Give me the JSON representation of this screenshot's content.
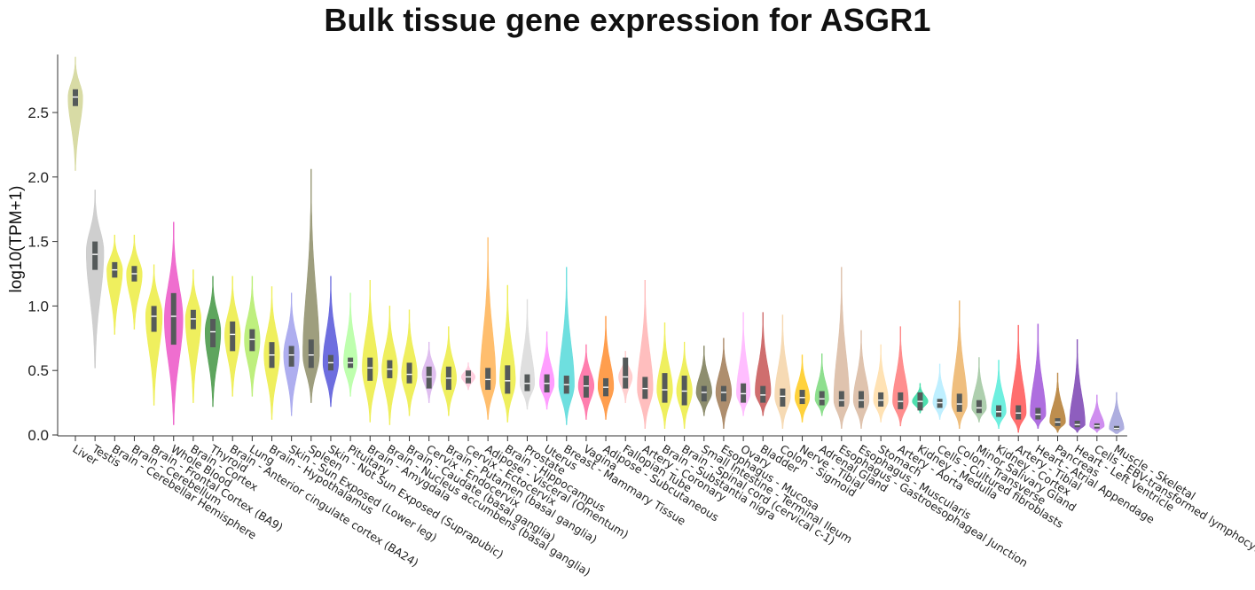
{
  "chart_data": {
    "type": "violin",
    "title": "Bulk tissue gene expression for ASGR1",
    "ylabel": "log10(TPM+1)",
    "xlabel": "",
    "ylim": [
      0,
      2.95
    ],
    "yticks": [
      "0.0",
      "0.5",
      "1.0",
      "1.5",
      "2.0",
      "2.5"
    ],
    "series": [
      {
        "tissue": "Liver",
        "color": "#d6d9a0",
        "min": 2.05,
        "q1": 2.55,
        "median": 2.62,
        "q3": 2.68,
        "max": 2.93,
        "peak": 2.62,
        "width": 0.75
      },
      {
        "tissue": "Testis",
        "color": "#cccccc",
        "min": 0.52,
        "q1": 1.28,
        "median": 1.4,
        "q3": 1.5,
        "max": 1.9,
        "peak": 1.42,
        "width": 0.9
      },
      {
        "tissue": "Brain - Cerebellar Hemisphere",
        "color": "#eeee55",
        "min": 0.78,
        "q1": 1.22,
        "median": 1.28,
        "q3": 1.34,
        "max": 1.55,
        "peak": 1.28,
        "width": 0.8
      },
      {
        "tissue": "Brain - Cerebellum",
        "color": "#eeee55",
        "min": 0.82,
        "q1": 1.19,
        "median": 1.25,
        "q3": 1.31,
        "max": 1.55,
        "peak": 1.25,
        "width": 0.8
      },
      {
        "tissue": "Brain - Frontal Cortex (BA9)",
        "color": "#eeee55",
        "min": 0.23,
        "q1": 0.8,
        "median": 0.92,
        "q3": 1.0,
        "max": 1.32,
        "peak": 0.93,
        "width": 0.85
      },
      {
        "tissue": "Whole Blood",
        "color": "#ee66cc",
        "min": 0.08,
        "q1": 0.7,
        "median": 0.92,
        "q3": 1.1,
        "max": 1.65,
        "peak": 0.9,
        "width": 0.95
      },
      {
        "tissue": "Brain - Cortex",
        "color": "#eeee55",
        "min": 0.25,
        "q1": 0.82,
        "median": 0.9,
        "q3": 0.97,
        "max": 1.28,
        "peak": 0.9,
        "width": 0.8
      },
      {
        "tissue": "Thyroid",
        "color": "#55a055",
        "min": 0.22,
        "q1": 0.68,
        "median": 0.8,
        "q3": 0.9,
        "max": 1.23,
        "peak": 0.8,
        "width": 0.8
      },
      {
        "tissue": "Brain - Anterior cingulate cortex (BA24)",
        "color": "#eeee55",
        "min": 0.3,
        "q1": 0.65,
        "median": 0.78,
        "q3": 0.88,
        "max": 1.23,
        "peak": 0.78,
        "width": 0.8
      },
      {
        "tissue": "Lung",
        "color": "#bbee77",
        "min": 0.3,
        "q1": 0.65,
        "median": 0.74,
        "q3": 0.82,
        "max": 1.23,
        "peak": 0.74,
        "width": 0.8
      },
      {
        "tissue": "Brain - Hypothalamus",
        "color": "#eeee55",
        "min": 0.12,
        "q1": 0.52,
        "median": 0.62,
        "q3": 0.72,
        "max": 1.15,
        "peak": 0.62,
        "width": 0.8
      },
      {
        "tissue": "Skin - Sun Exposed (Lower leg)",
        "color": "#aaaaee",
        "min": 0.15,
        "q1": 0.53,
        "median": 0.62,
        "q3": 0.69,
        "max": 1.1,
        "peak": 0.62,
        "width": 0.8
      },
      {
        "tissue": "Spleen",
        "color": "#999977",
        "min": 0.25,
        "q1": 0.52,
        "median": 0.62,
        "q3": 0.74,
        "max": 2.06,
        "peak": 0.62,
        "width": 0.85
      },
      {
        "tissue": "Skin - Not Sun Exposed (Suprapubic)",
        "color": "#6666dd",
        "min": 0.22,
        "q1": 0.5,
        "median": 0.56,
        "q3": 0.62,
        "max": 1.23,
        "peak": 0.56,
        "width": 0.8
      },
      {
        "tissue": "Pituitary",
        "color": "#bbffaa",
        "min": 0.3,
        "q1": 0.52,
        "median": 0.56,
        "q3": 0.6,
        "max": 1.1,
        "peak": 0.56,
        "width": 0.7
      },
      {
        "tissue": "Brain - Amygdala",
        "color": "#eeee55",
        "min": 0.1,
        "q1": 0.42,
        "median": 0.52,
        "q3": 0.6,
        "max": 1.2,
        "peak": 0.52,
        "width": 0.8
      },
      {
        "tissue": "Brain - Nucleus accumbens (basal ganglia)",
        "color": "#eeee55",
        "min": 0.08,
        "q1": 0.44,
        "median": 0.51,
        "q3": 0.58,
        "max": 1.0,
        "peak": 0.51,
        "width": 0.8
      },
      {
        "tissue": "Brain - Caudate (basal ganglia)",
        "color": "#eeee55",
        "min": 0.15,
        "q1": 0.4,
        "median": 0.47,
        "q3": 0.56,
        "max": 0.97,
        "peak": 0.47,
        "width": 0.8
      },
      {
        "tissue": "Cervix - Endocervix",
        "color": "#ddbbee",
        "min": 0.25,
        "q1": 0.36,
        "median": 0.45,
        "q3": 0.53,
        "max": 0.72,
        "peak": 0.47,
        "width": 0.7
      },
      {
        "tissue": "Brain - Putamen (basal ganglia)",
        "color": "#eeee55",
        "min": 0.15,
        "q1": 0.35,
        "median": 0.44,
        "q3": 0.53,
        "max": 0.84,
        "peak": 0.44,
        "width": 0.8
      },
      {
        "tissue": "Cervix - Ectocervix",
        "color": "#ffccdd",
        "min": 0.35,
        "q1": 0.4,
        "median": 0.45,
        "q3": 0.5,
        "max": 0.56,
        "peak": 0.45,
        "width": 0.7
      },
      {
        "tissue": "Adipose - Visceral (Omentum)",
        "color": "#ffbb66",
        "min": 0.12,
        "q1": 0.35,
        "median": 0.43,
        "q3": 0.52,
        "max": 1.53,
        "peak": 0.43,
        "width": 0.8
      },
      {
        "tissue": "Brain - Hippocampus",
        "color": "#eeee55",
        "min": 0.1,
        "q1": 0.32,
        "median": 0.42,
        "q3": 0.54,
        "max": 1.16,
        "peak": 0.42,
        "width": 0.8
      },
      {
        "tissue": "Prostate",
        "color": "#dddddd",
        "min": 0.2,
        "q1": 0.34,
        "median": 0.4,
        "q3": 0.47,
        "max": 1.05,
        "peak": 0.4,
        "width": 0.75
      },
      {
        "tissue": "Uterus",
        "color": "#ff99ff",
        "min": 0.2,
        "q1": 0.33,
        "median": 0.4,
        "q3": 0.47,
        "max": 0.8,
        "peak": 0.4,
        "width": 0.75
      },
      {
        "tissue": "Breast - Mammary Tissue",
        "color": "#66dddd",
        "min": 0.08,
        "q1": 0.32,
        "median": 0.39,
        "q3": 0.46,
        "max": 1.3,
        "peak": 0.39,
        "width": 0.8
      },
      {
        "tissue": "Vagina",
        "color": "#ff77aa",
        "min": 0.12,
        "q1": 0.29,
        "median": 0.38,
        "q3": 0.46,
        "max": 0.7,
        "peak": 0.38,
        "width": 0.8
      },
      {
        "tissue": "Adipose - Subcutaneous",
        "color": "#ff9944",
        "min": 0.12,
        "q1": 0.3,
        "median": 0.37,
        "q3": 0.44,
        "max": 0.92,
        "peak": 0.37,
        "width": 0.8
      },
      {
        "tissue": "Fallopian Tube",
        "color": "#ffcccc",
        "min": 0.25,
        "q1": 0.36,
        "median": 0.45,
        "q3": 0.6,
        "max": 0.65,
        "peak": 0.45,
        "width": 0.7
      },
      {
        "tissue": "Artery - Coronary",
        "color": "#ffbbbb",
        "min": 0.05,
        "q1": 0.28,
        "median": 0.36,
        "q3": 0.45,
        "max": 1.2,
        "peak": 0.36,
        "width": 0.8
      },
      {
        "tissue": "Brain - Substantia nigra",
        "color": "#eeee55",
        "min": 0.05,
        "q1": 0.25,
        "median": 0.35,
        "q3": 0.48,
        "max": 0.87,
        "peak": 0.35,
        "width": 0.8
      },
      {
        "tissue": "Brain - Spinal cord (cervical c-1)",
        "color": "#eeee55",
        "min": 0.05,
        "q1": 0.23,
        "median": 0.34,
        "q3": 0.46,
        "max": 0.72,
        "peak": 0.34,
        "width": 0.8
      },
      {
        "tissue": "Small Intestine - Terminal Ileum",
        "color": "#888866",
        "min": 0.15,
        "q1": 0.26,
        "median": 0.33,
        "q3": 0.38,
        "max": 0.69,
        "peak": 0.33,
        "width": 0.8
      },
      {
        "tissue": "Esophagus - Mucosa",
        "color": "#aa8866",
        "min": 0.05,
        "q1": 0.26,
        "median": 0.33,
        "q3": 0.38,
        "max": 0.75,
        "peak": 0.33,
        "width": 0.8
      },
      {
        "tissue": "Ovary",
        "color": "#ffbbff",
        "min": 0.15,
        "q1": 0.25,
        "median": 0.32,
        "q3": 0.4,
        "max": 0.95,
        "peak": 0.32,
        "width": 0.7
      },
      {
        "tissue": "Bladder",
        "color": "#cc6666",
        "min": 0.15,
        "q1": 0.25,
        "median": 0.31,
        "q3": 0.38,
        "max": 0.95,
        "peak": 0.33,
        "width": 0.8
      },
      {
        "tissue": "Colon - Sigmoid",
        "color": "#f5d8b0",
        "min": 0.05,
        "q1": 0.22,
        "median": 0.3,
        "q3": 0.36,
        "max": 0.93,
        "peak": 0.3,
        "width": 0.8
      },
      {
        "tissue": "Nerve - Tibial",
        "color": "#ffd033",
        "min": 0.1,
        "q1": 0.24,
        "median": 0.29,
        "q3": 0.35,
        "max": 0.62,
        "peak": 0.29,
        "width": 0.75
      },
      {
        "tissue": "Adrenal Gland",
        "color": "#88dd88",
        "min": 0.15,
        "q1": 0.23,
        "median": 0.28,
        "q3": 0.34,
        "max": 0.63,
        "peak": 0.28,
        "width": 0.7
      },
      {
        "tissue": "Esophagus - Gastroesophageal Junction",
        "color": "#ddc0aa",
        "min": 0.05,
        "q1": 0.22,
        "median": 0.27,
        "q3": 0.34,
        "max": 1.3,
        "peak": 0.27,
        "width": 0.8
      },
      {
        "tissue": "Esophagus - Muscularis",
        "color": "#ddc0aa",
        "min": 0.05,
        "q1": 0.21,
        "median": 0.27,
        "q3": 0.34,
        "max": 0.81,
        "peak": 0.27,
        "width": 0.8
      },
      {
        "tissue": "Stomach",
        "color": "#ffe0b0",
        "min": 0.1,
        "q1": 0.22,
        "median": 0.27,
        "q3": 0.33,
        "max": 0.7,
        "peak": 0.27,
        "width": 0.75
      },
      {
        "tissue": "Artery - Aorta",
        "color": "#ff8888",
        "min": 0.07,
        "q1": 0.2,
        "median": 0.26,
        "q3": 0.33,
        "max": 0.84,
        "peak": 0.26,
        "width": 0.8
      },
      {
        "tissue": "Kidney - Medulla",
        "color": "#44ddaa",
        "min": 0.17,
        "q1": 0.19,
        "median": 0.26,
        "q3": 0.33,
        "max": 0.4,
        "peak": 0.26,
        "width": 0.8
      },
      {
        "tissue": "Cells - Cultured fibroblasts",
        "color": "#bbeeff",
        "min": 0.12,
        "q1": 0.21,
        "median": 0.25,
        "q3": 0.28,
        "max": 0.55,
        "peak": 0.25,
        "width": 0.7
      },
      {
        "tissue": "Colon - Transverse",
        "color": "#eebb77",
        "min": 0.05,
        "q1": 0.18,
        "median": 0.24,
        "q3": 0.32,
        "max": 1.04,
        "peak": 0.24,
        "width": 0.8
      },
      {
        "tissue": "Minor Salivary Gland",
        "color": "#aaccaa",
        "min": 0.1,
        "q1": 0.17,
        "median": 0.21,
        "q3": 0.27,
        "max": 0.6,
        "peak": 0.21,
        "width": 0.75
      },
      {
        "tissue": "Kidney - Cortex",
        "color": "#66eedd",
        "min": 0.05,
        "q1": 0.14,
        "median": 0.18,
        "q3": 0.23,
        "max": 0.58,
        "peak": 0.18,
        "width": 0.75
      },
      {
        "tissue": "Artery - Tibial",
        "color": "#ff6666",
        "min": 0.02,
        "q1": 0.12,
        "median": 0.17,
        "q3": 0.23,
        "max": 0.85,
        "peak": 0.17,
        "width": 0.8
      },
      {
        "tissue": "Heart - Atrial Appendage",
        "color": "#aa66dd",
        "min": 0.05,
        "q1": 0.12,
        "median": 0.16,
        "q3": 0.21,
        "max": 0.86,
        "peak": 0.16,
        "width": 0.8
      },
      {
        "tissue": "Pancreas",
        "color": "#bb8844",
        "min": 0.02,
        "q1": 0.07,
        "median": 0.1,
        "q3": 0.13,
        "max": 0.48,
        "peak": 0.1,
        "width": 0.8
      },
      {
        "tissue": "Heart - Left Ventricle",
        "color": "#8855bb",
        "min": 0.02,
        "q1": 0.06,
        "median": 0.08,
        "q3": 0.11,
        "max": 0.74,
        "peak": 0.08,
        "width": 0.8
      },
      {
        "tissue": "Cells - EBV-transformed lymphocytes",
        "color": "#cc88ee",
        "min": 0.02,
        "q1": 0.05,
        "median": 0.07,
        "q3": 0.09,
        "max": 0.31,
        "peak": 0.07,
        "width": 0.75
      },
      {
        "tissue": "Muscle - Skeletal",
        "color": "#aaaadd",
        "min": 0.01,
        "q1": 0.04,
        "median": 0.05,
        "q3": 0.07,
        "max": 0.33,
        "peak": 0.05,
        "width": 0.75
      }
    ]
  }
}
